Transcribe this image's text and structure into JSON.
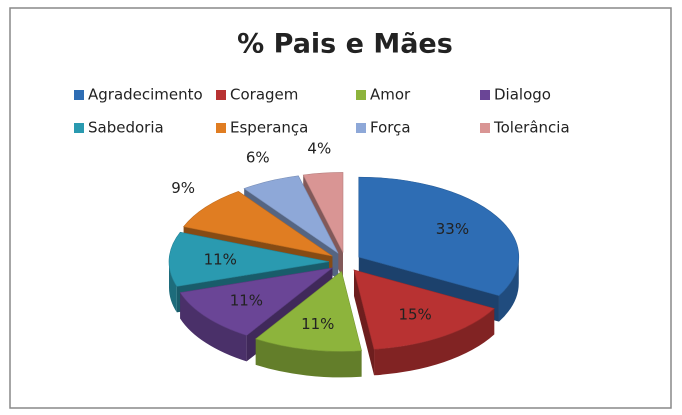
{
  "chart_data": {
    "type": "pie3d",
    "title": "% Pais e Mães",
    "categories": [
      "Agradecimento",
      "Coragem",
      "Amor",
      "Dialogo",
      "Sabedoria",
      "Esperança",
      "Força",
      "Tolerância"
    ],
    "values": [
      33,
      15,
      11,
      11,
      11,
      9,
      6,
      4
    ],
    "value_labels": [
      "33%",
      "15%",
      "11%",
      "11%",
      "11%",
      "9%",
      "6%",
      "4%"
    ],
    "colors": [
      "#2e6db4",
      "#b83232",
      "#8db43c",
      "#6a4596",
      "#2a9ab0",
      "#e07d22",
      "#8ea8d8",
      "#d99594"
    ],
    "legend": "top"
  }
}
